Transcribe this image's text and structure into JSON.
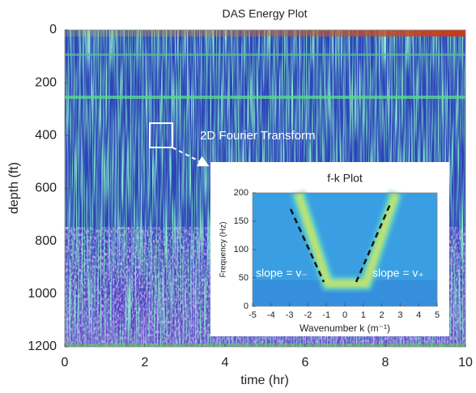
{
  "chart_data": [
    {
      "type": "heatmap",
      "title": "DAS Energy Plot",
      "x_label": "time (hr)",
      "y_label": "depth (ft)",
      "xlim": [
        0,
        10
      ],
      "xticks": [
        0,
        2,
        4,
        6,
        8,
        10
      ],
      "ylim": [
        0,
        1200
      ],
      "yticks": [
        0,
        200,
        400,
        600,
        800,
        1000,
        1200
      ],
      "y_reversed": true,
      "annotations": [
        "2D Fourier Transform"
      ]
    },
    {
      "type": "heatmap",
      "title": "f-k Plot",
      "x_label": "Wavenumber k (m⁻¹)",
      "y_label": "Frequency (Hz)",
      "xlim": [
        -5,
        5
      ],
      "xticks": [
        -5,
        -4,
        -3,
        -2,
        -1,
        0,
        1,
        2,
        3,
        4,
        5
      ],
      "ylim": [
        0,
        200
      ],
      "yticks": [
        0,
        50,
        100,
        150,
        200
      ],
      "y_reversed": false,
      "annotations": [
        "slope = v₋",
        "slope = v₊"
      ]
    }
  ]
}
